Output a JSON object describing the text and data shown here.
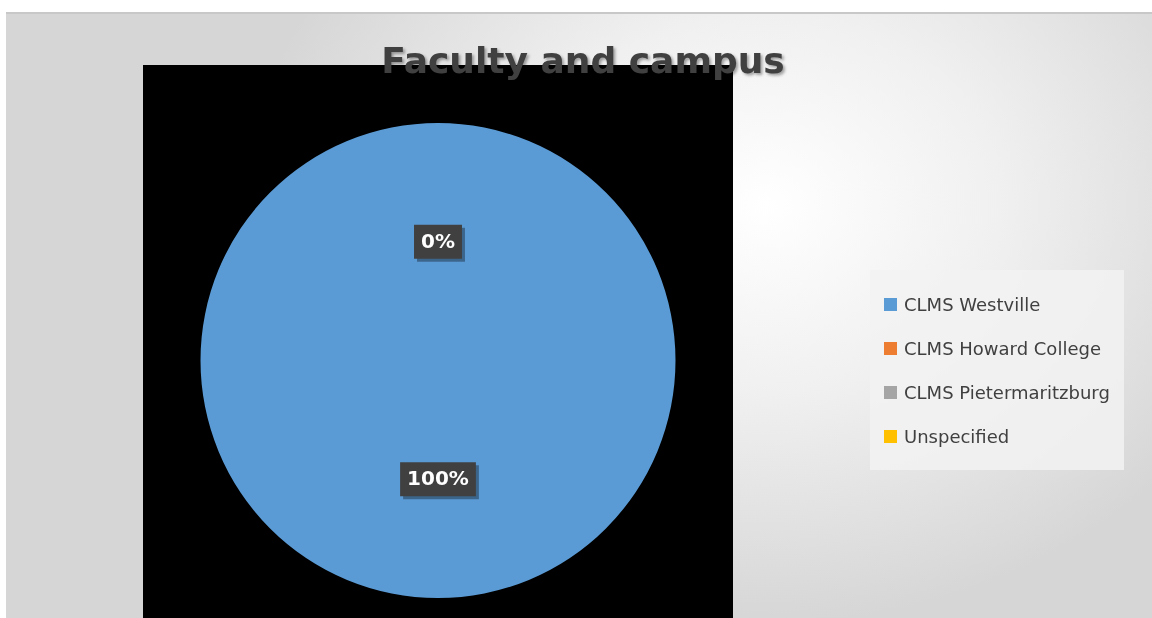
{
  "chart_data": {
    "type": "pie",
    "title": "Faculty and campus",
    "categories": [
      "CLMS Westville",
      "CLMS Howard College",
      "CLMS Pietermaritzburg",
      "Unspecified"
    ],
    "values": [
      100,
      0,
      0,
      0
    ],
    "colors": [
      "#5b9bd5",
      "#ed7d31",
      "#a5a5a5",
      "#ffc000"
    ],
    "value_labels": [
      "100%",
      "0%",
      null,
      null
    ],
    "legend": "right"
  }
}
